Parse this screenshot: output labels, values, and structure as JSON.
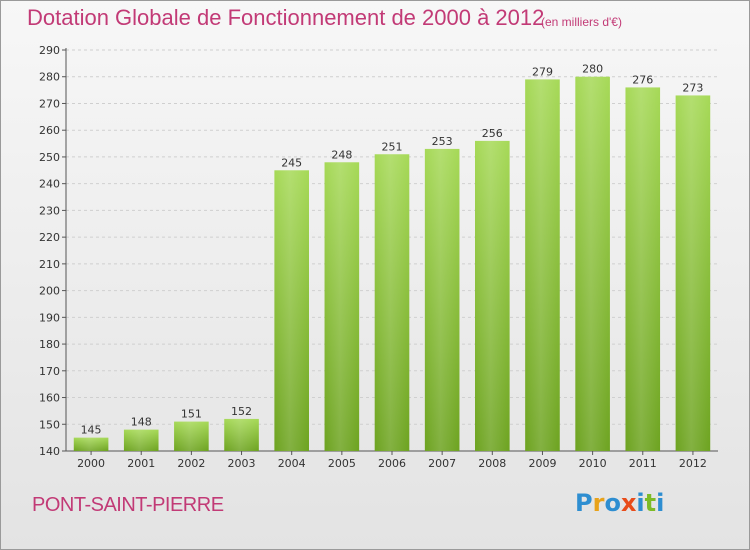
{
  "title": "Dotation Globale de Fonctionnement de 2000 à 2012",
  "unit_note": "(en milliers d'€)",
  "place_name": "PONT-SAINT-PIERRE",
  "logo": {
    "letters": [
      "P",
      "r",
      "o",
      "x",
      "i",
      "t",
      "i"
    ],
    "colors": [
      "#2e8ed1",
      "#e8a21a",
      "#2e8ed1",
      "#e84c1a",
      "#2e8ed1",
      "#7dbb27",
      "#2e8ed1"
    ]
  },
  "colors": {
    "title": "#c23a76",
    "bar_light": "#a6d957",
    "bar_dark": "#6da320"
  },
  "chart_data": {
    "type": "bar",
    "title": "Dotation Globale de Fonctionnement de 2000 à 2012",
    "categories": [
      "2000",
      "2001",
      "2002",
      "2003",
      "2004",
      "2005",
      "2006",
      "2007",
      "2008",
      "2009",
      "2010",
      "2011",
      "2012"
    ],
    "values": [
      145,
      148,
      151,
      152,
      245,
      248,
      251,
      253,
      256,
      279,
      280,
      276,
      273
    ],
    "ylim": [
      140,
      290
    ],
    "yticks": [
      140,
      150,
      160,
      170,
      180,
      190,
      200,
      210,
      220,
      230,
      240,
      250,
      260,
      270,
      280,
      290
    ],
    "grid": true,
    "data_labels": true
  }
}
